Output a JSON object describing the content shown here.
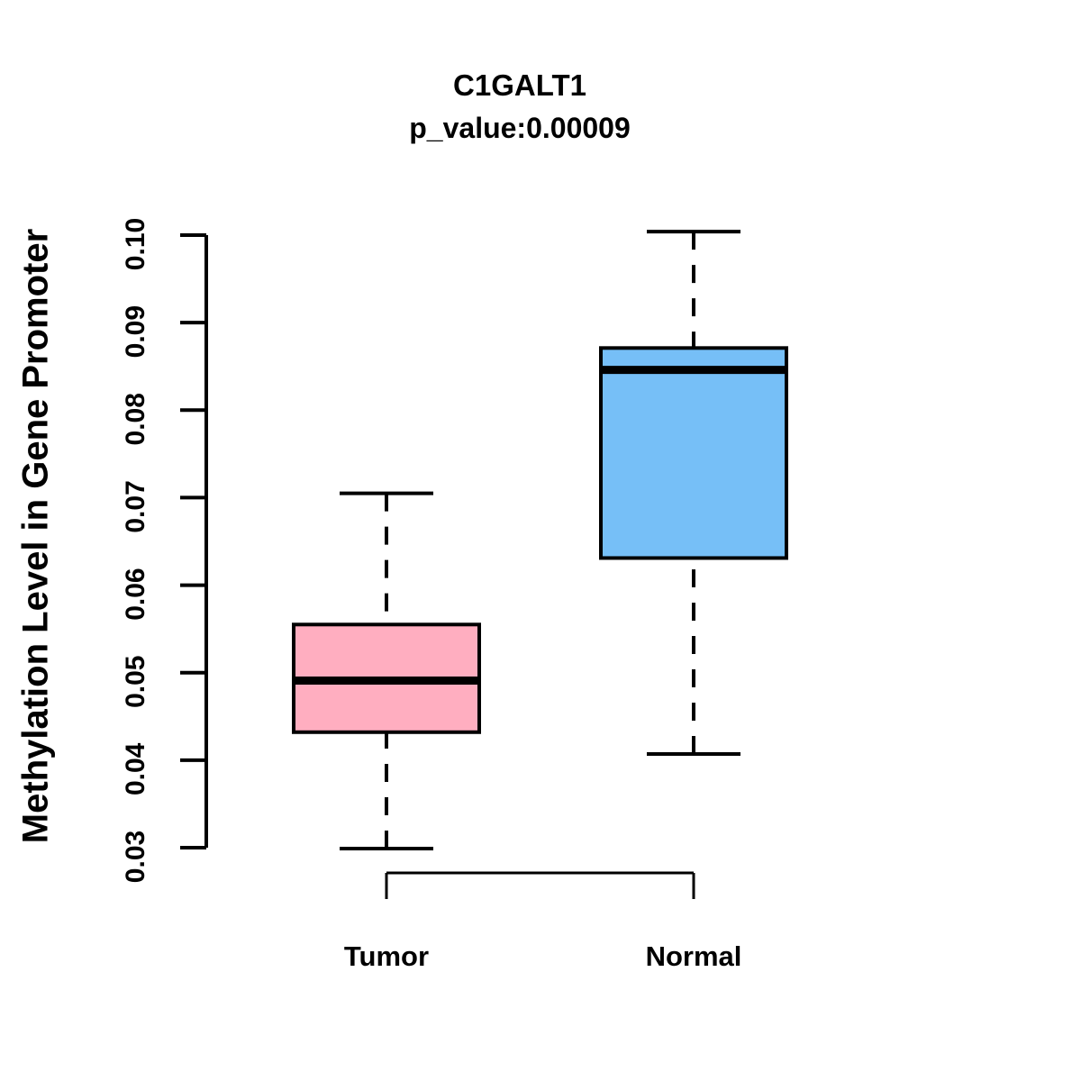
{
  "chart_data": {
    "type": "boxplot",
    "title": "C1GALT1",
    "subtitle": "p_value:0.00009",
    "p_value": "0.00009",
    "ylabel": "Methylation Level in Gene Promoter",
    "xlabel": "",
    "ylim": [
      0.03,
      0.1
    ],
    "yticks": [
      "0.03",
      "0.04",
      "0.05",
      "0.06",
      "0.07",
      "0.08",
      "0.09",
      "0.10"
    ],
    "grid": false,
    "legend": "none",
    "line_color": "#000000",
    "background": "#FFFFFF",
    "groups": [
      {
        "label": "Tumor",
        "fill": "#FFAEC0",
        "whisker_low": 0.0299,
        "q1": 0.0432,
        "median": 0.0491,
        "q3": 0.0555,
        "whisker_high": 0.0705
      },
      {
        "label": "Normal",
        "fill": "#76BFF7",
        "whisker_low": 0.0407,
        "q1": 0.0631,
        "median": 0.0846,
        "q3": 0.0871,
        "whisker_high": 0.1004
      }
    ]
  }
}
